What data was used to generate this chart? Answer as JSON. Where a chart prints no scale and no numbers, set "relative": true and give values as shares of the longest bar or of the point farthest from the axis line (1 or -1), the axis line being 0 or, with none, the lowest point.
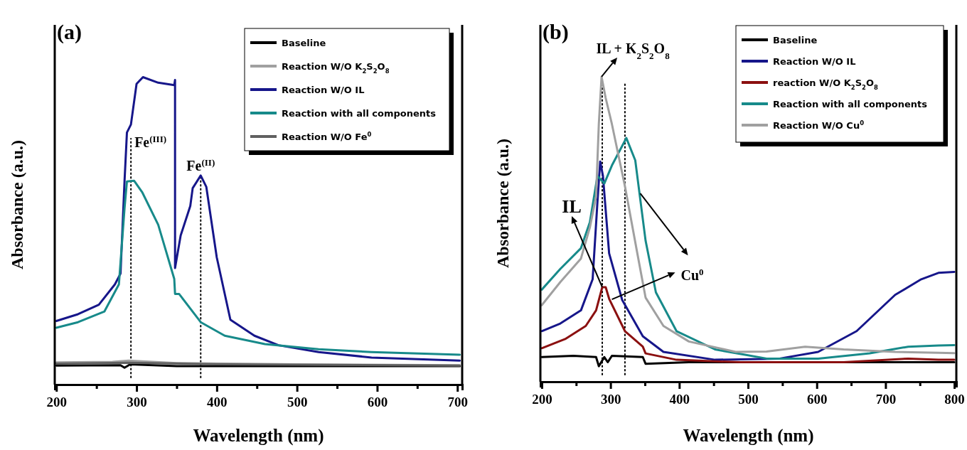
{
  "chart_data": [
    {
      "type": "line",
      "relative": true,
      "xlabel": "Wavelength (nm)",
      "ylabel": "Absorbance (a.u.)",
      "xlim": [
        198,
        706
      ],
      "xticks": [
        200,
        {
          "value": 250,
          "label": null
        },
        300,
        {
          "value": 350,
          "label": null
        },
        400,
        {
          "value": 450,
          "label": null
        },
        500,
        {
          "value": 550,
          "label": null
        },
        600,
        {
          "value": 650,
          "label": null
        },
        700
      ],
      "legend": "top right",
      "annotations": [
        "(a)"
      ],
      "ref_lines": [
        {
          "axis": "x",
          "value": 293,
          "label": "Fe$^{(III)}$",
          "line_style": "dotted",
          "color": "#000000"
        },
        {
          "axis": "x",
          "value": 380,
          "label": "Fe$^{(II)}$",
          "line_style": "dotted",
          "color": "#000000"
        }
      ],
      "series": [
        {
          "name": "Baseline",
          "color": "#000000",
          "x": [
            200,
            280,
            285,
            292,
            350,
            703
          ],
          "values": [
            0.062,
            0.063,
            0.055,
            0.066,
            0.06,
            0.06
          ]
        },
        {
          "name": "Reaction W/O K$_{2}$S$_{2}$O$_{8}$",
          "color": "#a0a0a0",
          "x": [
            200,
            270,
            290,
            350,
            500,
            703
          ],
          "values": [
            0.072,
            0.074,
            0.078,
            0.07,
            0.066,
            0.063
          ]
        },
        {
          "name": "Reaction W/O IL",
          "color": "#16168a",
          "x": [
            200,
            227,
            253,
            273,
            280,
            285,
            288,
            293,
            300,
            308,
            327,
            347,
            348,
            348,
            355,
            367,
            370,
            380,
            387,
            400,
            417,
            447,
            477,
            527,
            593,
            703
          ],
          "values": [
            0.207,
            0.229,
            0.26,
            0.326,
            0.361,
            0.661,
            0.82,
            0.846,
            0.978,
            1.0,
            0.982,
            0.974,
            0.991,
            0.379,
            0.485,
            0.581,
            0.639,
            0.68,
            0.643,
            0.414,
            0.211,
            0.159,
            0.128,
            0.106,
            0.088,
            0.078
          ]
        },
        {
          "name": "Reaction with all components",
          "color": "#178a8a",
          "x": [
            200,
            227,
            260,
            278,
            285,
            288,
            297,
            307,
            327,
            347,
            348,
            353,
            380,
            410,
            460,
            527,
            593,
            703
          ],
          "values": [
            0.185,
            0.203,
            0.238,
            0.326,
            0.573,
            0.661,
            0.663,
            0.626,
            0.52,
            0.344,
            0.295,
            0.295,
            0.203,
            0.159,
            0.132,
            0.115,
            0.106,
            0.097
          ]
        },
        {
          "name": "Reaction W/O Fe$^{0}$",
          "color": "#606060",
          "x": [
            200,
            290,
            400,
            703
          ],
          "values": [
            0.068,
            0.071,
            0.066,
            0.062
          ]
        }
      ]
    },
    {
      "type": "line",
      "relative": true,
      "xlabel": "Wavelength (nm)",
      "ylabel": "Absorbance (a.u.)",
      "xlim": [
        198,
        803
      ],
      "xticks": [
        200,
        {
          "value": 250,
          "label": null
        },
        300,
        {
          "value": 350,
          "label": null
        },
        400,
        {
          "value": 450,
          "label": null
        },
        500,
        {
          "value": 550,
          "label": null
        },
        600,
        {
          "value": 650,
          "label": null
        },
        700,
        {
          "value": 750,
          "label": null
        },
        800
      ],
      "legend": "top right",
      "annotations": [
        "(b)",
        {
          "text": "IL + K$_{2}$S$_{2}$O$_{8}$",
          "x": 287,
          "y": 1.0
        },
        {
          "text": "IL",
          "x": 288,
          "y": 0.31
        },
        {
          "text": "Cu$^{0}$",
          "x": 302,
          "y": 0.27
        }
      ],
      "ref_lines": [
        {
          "axis": "x",
          "value": 288,
          "line_style": "dotted",
          "color": "#000000"
        },
        {
          "axis": "x",
          "value": 321,
          "line_style": "dotted",
          "color": "#000000"
        }
      ],
      "series": [
        {
          "name": "Baseline",
          "color": "#000000",
          "x": [
            200,
            246,
            279,
            283,
            291,
            296,
            302,
            347,
            351,
            414,
            800
          ],
          "values": [
            0.081,
            0.085,
            0.081,
            0.051,
            0.081,
            0.064,
            0.085,
            0.081,
            0.059,
            0.064,
            0.064
          ]
        },
        {
          "name": "Reaction W/O IL",
          "color": "#16168a",
          "x": [
            200,
            227,
            257,
            274,
            281,
            285,
            289,
            298,
            317,
            347,
            377,
            452,
            546,
            602,
            658,
            714,
            752,
            777,
            800
          ],
          "values": [
            0.166,
            0.191,
            0.234,
            0.336,
            0.59,
            0.722,
            0.675,
            0.421,
            0.268,
            0.149,
            0.098,
            0.072,
            0.076,
            0.098,
            0.166,
            0.285,
            0.336,
            0.357,
            0.36
          ]
        },
        {
          "name": "reaction W/O K$_{2}$S$_{2}$O$_{8}$",
          "color": "#8b1010",
          "x": [
            200,
            234,
            264,
            279,
            288,
            293,
            298,
            321,
            347,
            351,
            396,
            489,
            639,
            733,
            777,
            800
          ],
          "values": [
            0.11,
            0.14,
            0.183,
            0.234,
            0.31,
            0.31,
            0.272,
            0.166,
            0.115,
            0.093,
            0.072,
            0.064,
            0.064,
            0.076,
            0.072,
            0.072
          ]
        },
        {
          "name": "Reaction with all components",
          "color": "#178a8a",
          "x": [
            200,
            227,
            257,
            270,
            281,
            291,
            302,
            323,
            336,
            351,
            366,
            396,
            452,
            527,
            602,
            677,
            733,
            777,
            800
          ],
          "values": [
            0.302,
            0.37,
            0.438,
            0.523,
            0.675,
            0.65,
            0.709,
            0.799,
            0.726,
            0.463,
            0.293,
            0.166,
            0.106,
            0.076,
            0.076,
            0.093,
            0.115,
            0.119,
            0.12
          ]
        },
        {
          "name": "Reaction W/O Cu$^{0}$",
          "color": "#a0a0a0",
          "x": [
            200,
            227,
            257,
            270,
            279,
            283,
            287,
            293,
            302,
            321,
            339,
            351,
            377,
            414,
            482,
            527,
            583,
            639,
            714,
            777,
            800
          ],
          "values": [
            0.251,
            0.327,
            0.404,
            0.506,
            0.607,
            0.845,
            1.0,
            0.93,
            0.845,
            0.641,
            0.421,
            0.276,
            0.183,
            0.132,
            0.098,
            0.099,
            0.115,
            0.106,
            0.098,
            0.095,
            0.094
          ]
        }
      ]
    }
  ]
}
